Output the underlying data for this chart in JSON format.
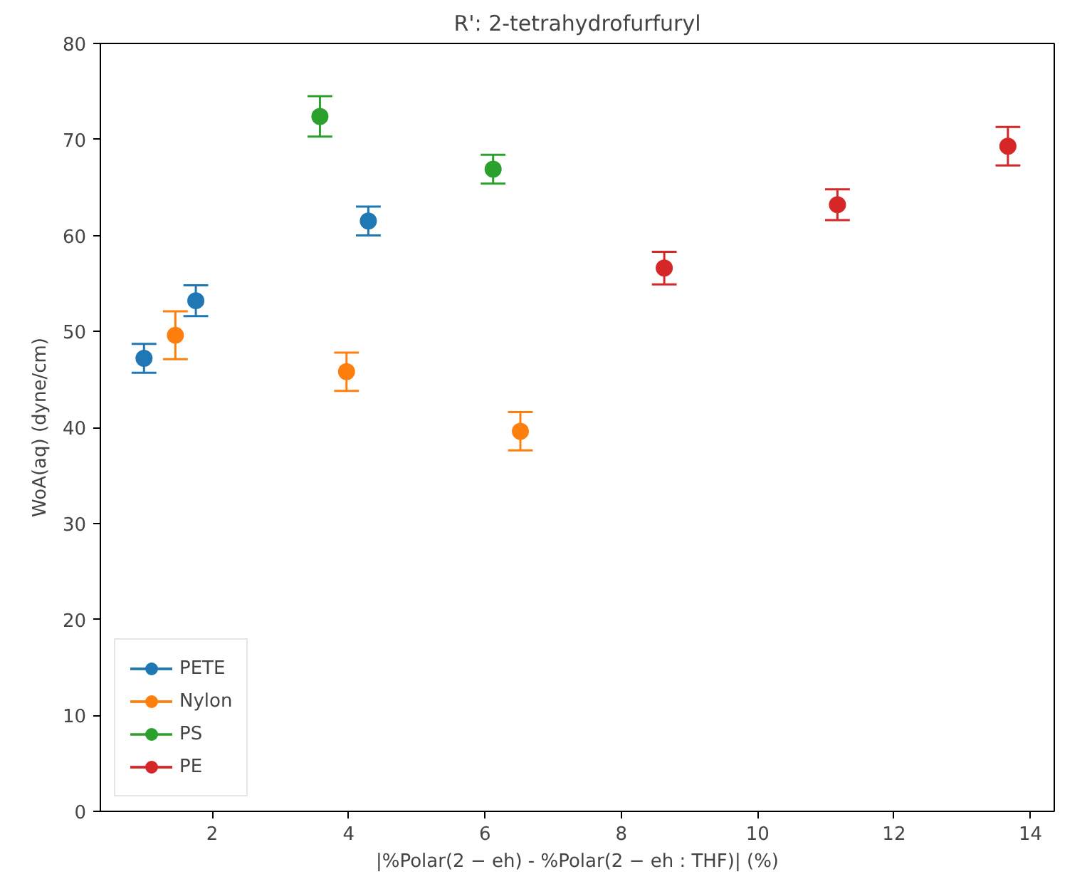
{
  "chart_data": {
    "type": "scatter",
    "title": "R': 2-tetrahydrofurfuryl",
    "xlabel": "|%Polar(2 − eh) - %Polar(2 − eh : THF)| (%)",
    "ylabel": "WoA(aq) (dyne/cm)",
    "series": [
      {
        "name": "PETE",
        "color": "#1f77b4",
        "x": [
          1.0,
          1.76,
          4.29
        ],
        "values": [
          47.2,
          53.2,
          61.5
        ],
        "errors": [
          1.5,
          1.6,
          1.5
        ]
      },
      {
        "name": "Nylon",
        "color": "#ff7f0e",
        "x": [
          1.46,
          3.97,
          6.52
        ],
        "values": [
          49.6,
          45.8,
          39.6
        ],
        "errors": [
          2.5,
          2.0,
          2.0
        ]
      },
      {
        "name": "PS",
        "color": "#2ca02c",
        "x": [
          3.58,
          6.12
        ],
        "values": [
          72.4,
          66.9
        ],
        "errors": [
          2.1,
          1.5
        ]
      },
      {
        "name": "PE",
        "color": "#d62728",
        "x": [
          8.63,
          11.17,
          13.67
        ],
        "values": [
          56.6,
          63.2,
          69.3
        ],
        "errors": [
          1.7,
          1.6,
          2.0
        ]
      }
    ],
    "xlim": [
      0.36,
      14.35
    ],
    "ylim": [
      0,
      80
    ],
    "xticks": [
      2,
      4,
      6,
      8,
      10,
      12,
      14
    ],
    "yticks": [
      0,
      10,
      20,
      30,
      40,
      50,
      60,
      70,
      80
    ],
    "marker": "circle",
    "grid": false,
    "legend": "bottom left"
  }
}
